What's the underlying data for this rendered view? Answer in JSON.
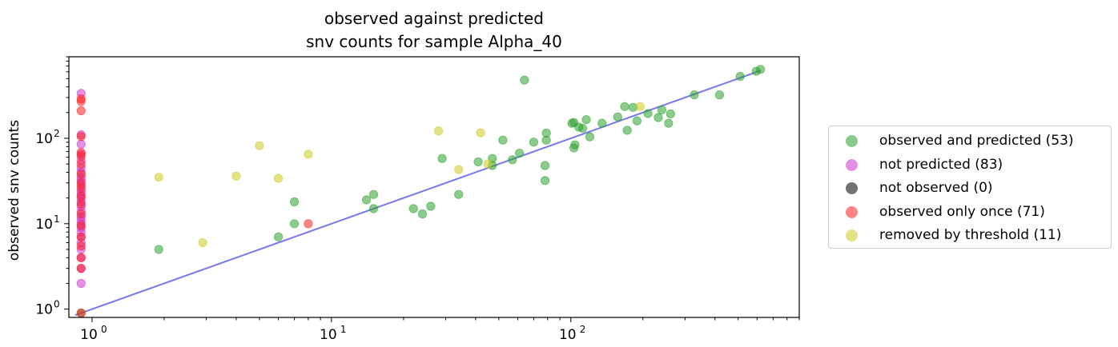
{
  "chart_data": {
    "type": "scatter",
    "title": [
      "observed against predicted",
      "snv counts for sample Alpha_40"
    ],
    "xlabel": "",
    "ylabel": "observed snv counts",
    "xscale": "log",
    "yscale": "log",
    "xlim": [
      0.8,
      900
    ],
    "ylim": [
      0.8,
      900
    ],
    "x_ticks": [
      {
        "value": 1,
        "base": "10",
        "exp": "0"
      },
      {
        "value": 10,
        "base": "10",
        "exp": "1"
      },
      {
        "value": 100,
        "base": "10",
        "exp": "2"
      }
    ],
    "y_ticks": [
      {
        "value": 1,
        "base": "10",
        "exp": "0"
      },
      {
        "value": 10,
        "base": "10",
        "exp": "1"
      },
      {
        "value": 100,
        "base": "10",
        "exp": "2"
      }
    ],
    "grid": false,
    "legend_position": "right",
    "reference_line": {
      "x": [
        0.85,
        620
      ],
      "y": [
        0.85,
        620
      ],
      "color": "#7777ee"
    },
    "series": [
      {
        "name": "observed and predicted (53)",
        "color": "#2ca02c",
        "points": [
          [
            0.9,
            0.9
          ],
          [
            1.9,
            5
          ],
          [
            6,
            7
          ],
          [
            7,
            10
          ],
          [
            7,
            18
          ],
          [
            14,
            19
          ],
          [
            15,
            15
          ],
          [
            15,
            22
          ],
          [
            22,
            15
          ],
          [
            24,
            13
          ],
          [
            26,
            16
          ],
          [
            29,
            58
          ],
          [
            34,
            22
          ],
          [
            41,
            53
          ],
          [
            47,
            48
          ],
          [
            47,
            58
          ],
          [
            52,
            95
          ],
          [
            57,
            56
          ],
          [
            61,
            67
          ],
          [
            64,
            480
          ],
          [
            70,
            90
          ],
          [
            78,
            48
          ],
          [
            78,
            32
          ],
          [
            79,
            95
          ],
          [
            79,
            115
          ],
          [
            101,
            150
          ],
          [
            103,
            153
          ],
          [
            103,
            77
          ],
          [
            104,
            84
          ],
          [
            108,
            135
          ],
          [
            112,
            131
          ],
          [
            116,
            165
          ],
          [
            120,
            104
          ],
          [
            135,
            150
          ],
          [
            157,
            178
          ],
          [
            168,
            235
          ],
          [
            172,
            124
          ],
          [
            182,
            230
          ],
          [
            189,
            160
          ],
          [
            210,
            195
          ],
          [
            232,
            175
          ],
          [
            240,
            215
          ],
          [
            256,
            150
          ],
          [
            261,
            193
          ],
          [
            328,
            322
          ],
          [
            418,
            322
          ],
          [
            510,
            530
          ],
          [
            595,
            610
          ],
          [
            620,
            640
          ]
        ]
      },
      {
        "name": "not predicted (83)",
        "color": "#cc33cc",
        "points": [
          [
            0.9,
            335
          ],
          [
            0.9,
            110
          ],
          [
            0.9,
            85
          ],
          [
            0.9,
            65
          ],
          [
            0.9,
            55
          ],
          [
            0.9,
            45
          ],
          [
            0.9,
            40
          ],
          [
            0.9,
            35
          ],
          [
            0.9,
            32
          ],
          [
            0.9,
            28
          ],
          [
            0.9,
            24
          ],
          [
            0.9,
            22
          ],
          [
            0.9,
            20
          ],
          [
            0.9,
            18
          ],
          [
            0.9,
            16
          ],
          [
            0.9,
            14
          ],
          [
            0.9,
            12
          ],
          [
            0.9,
            11
          ],
          [
            0.9,
            10
          ],
          [
            0.9,
            9
          ],
          [
            0.9,
            8
          ],
          [
            0.9,
            7
          ],
          [
            0.9,
            6
          ],
          [
            0.9,
            5
          ],
          [
            0.9,
            4
          ],
          [
            0.9,
            3
          ],
          [
            0.9,
            2
          ]
        ]
      },
      {
        "name": "not observed (0)",
        "color": "#000000",
        "points": []
      },
      {
        "name": "observed only once (71)",
        "color": "#ff2020",
        "points": [
          [
            0.9,
            290
          ],
          [
            0.9,
            270
          ],
          [
            0.9,
            210
          ],
          [
            0.9,
            105
          ],
          [
            0.9,
            68
          ],
          [
            0.9,
            62
          ],
          [
            0.9,
            50
          ],
          [
            0.9,
            38
          ],
          [
            0.9,
            30
          ],
          [
            0.9,
            26
          ],
          [
            0.9,
            21
          ],
          [
            0.9,
            17
          ],
          [
            0.9,
            13
          ],
          [
            0.9,
            9.5
          ],
          [
            0.9,
            7
          ],
          [
            0.9,
            5.5
          ],
          [
            0.9,
            4
          ],
          [
            0.9,
            3
          ],
          [
            0.9,
            0.9
          ],
          [
            8,
            10
          ]
        ]
      },
      {
        "name": "removed by threshold (11)",
        "color": "#cccc22",
        "points": [
          [
            1.9,
            35
          ],
          [
            2.9,
            6
          ],
          [
            4,
            36
          ],
          [
            5,
            82
          ],
          [
            6,
            34
          ],
          [
            8,
            65
          ],
          [
            28,
            122
          ],
          [
            34,
            43
          ],
          [
            42,
            116
          ],
          [
            45,
            50
          ],
          [
            195,
            235
          ]
        ]
      }
    ]
  }
}
